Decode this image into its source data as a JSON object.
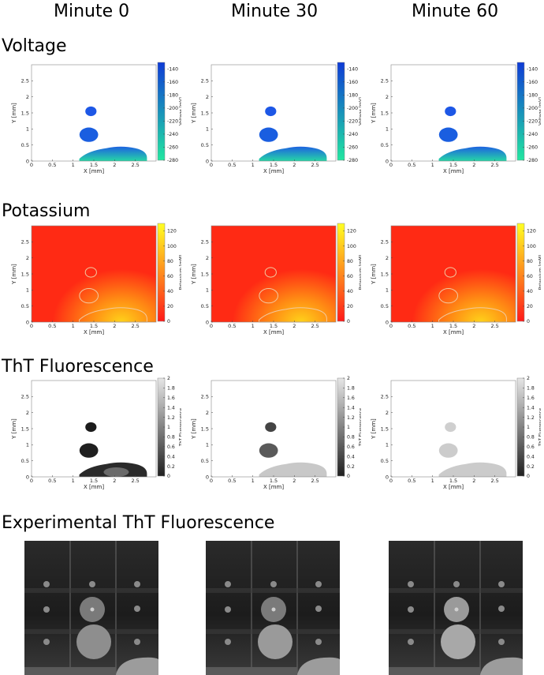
{
  "column_titles": [
    "Minute 0",
    "Minute 30",
    "Minute 60"
  ],
  "row_titles": {
    "voltage": "Voltage",
    "potassium": "Potassium",
    "tht": "ThT Fluorescence",
    "experimental": "Experimental ThT Fluorescence"
  },
  "colors": {
    "voltage_cmap": [
      "#22e6a0",
      "#0f3bd6"
    ],
    "potassium_cmap": [
      "#ff1a1a",
      "#ffff22"
    ],
    "tht_cmap": [
      "#202020",
      "#e6e6e6"
    ],
    "background": "#ffffff"
  },
  "chart_data": [
    {
      "type": "heatmap",
      "quantity": "voltage",
      "minute": 0,
      "xlabel": "X [mm]",
      "ylabel": "Y [mm]",
      "xlim": [
        0,
        3
      ],
      "ylim": [
        0,
        3
      ],
      "xticks": [
        "0",
        "0.5",
        "1",
        "1.5",
        "2",
        "2.5"
      ],
      "yticks": [
        "0",
        "0.5",
        "1",
        "1.5",
        "2",
        "2.5"
      ],
      "colorbar": {
        "label": "Voltage [mV]",
        "ticks": [
          "-140",
          "-160",
          "-180",
          "-200",
          "-220",
          "-240",
          "-260",
          "-280"
        ],
        "min": -280,
        "max": -130
      }
    },
    {
      "type": "heatmap",
      "quantity": "voltage",
      "minute": 30,
      "xlabel": "X [mm]",
      "ylabel": "Y [mm]",
      "xlim": [
        0,
        3
      ],
      "ylim": [
        0,
        3
      ],
      "xticks": [
        "0",
        "0.5",
        "1",
        "1.5",
        "2",
        "2.5"
      ],
      "yticks": [
        "0",
        "0.5",
        "1",
        "1.5",
        "2",
        "2.5"
      ],
      "colorbar": {
        "label": "Voltage [mV]",
        "ticks": [
          "-140",
          "-160",
          "-180",
          "-200",
          "-220",
          "-240",
          "-260",
          "-280"
        ],
        "min": -280,
        "max": -130
      }
    },
    {
      "type": "heatmap",
      "quantity": "voltage",
      "minute": 60,
      "xlabel": "X [mm]",
      "ylabel": "Y [mm]",
      "xlim": [
        0,
        3
      ],
      "ylim": [
        0,
        3
      ],
      "xticks": [
        "0",
        "0.5",
        "1",
        "1.5",
        "2",
        "2.5"
      ],
      "yticks": [
        "0",
        "0.5",
        "1",
        "1.5",
        "2",
        "2.5"
      ],
      "colorbar": {
        "label": "Voltage [mV]",
        "ticks": [
          "-140",
          "-160",
          "-180",
          "-200",
          "-220",
          "-240",
          "-260",
          "-280"
        ],
        "min": -280,
        "max": -130
      }
    },
    {
      "type": "heatmap",
      "quantity": "potassium",
      "minute": 0,
      "xlabel": "X [mm]",
      "ylabel": "Y [mm]",
      "xlim": [
        0,
        3
      ],
      "ylim": [
        0,
        3
      ],
      "xticks": [
        "0",
        "0.5",
        "1",
        "1.5",
        "2",
        "2.5"
      ],
      "yticks": [
        "0",
        "0.5",
        "1",
        "1.5",
        "2",
        "2.5"
      ],
      "colorbar": {
        "label": "Potassium [mM]",
        "ticks": [
          "120",
          "100",
          "80",
          "60",
          "40",
          "20",
          "0"
        ],
        "min": 0,
        "max": 130
      }
    },
    {
      "type": "heatmap",
      "quantity": "potassium",
      "minute": 30,
      "xlabel": "X [mm]",
      "ylabel": "Y [mm]",
      "xlim": [
        0,
        3
      ],
      "ylim": [
        0,
        3
      ],
      "xticks": [
        "0",
        "0.5",
        "1",
        "1.5",
        "2",
        "2.5"
      ],
      "yticks": [
        "0",
        "0.5",
        "1",
        "1.5",
        "2",
        "2.5"
      ],
      "colorbar": {
        "label": "Potassium [mM]",
        "ticks": [
          "120",
          "100",
          "80",
          "60",
          "40",
          "20",
          "0"
        ],
        "min": 0,
        "max": 130
      }
    },
    {
      "type": "heatmap",
      "quantity": "potassium",
      "minute": 60,
      "xlabel": "X [mm]",
      "ylabel": "Y [mm]",
      "xlim": [
        0,
        3
      ],
      "ylim": [
        0,
        3
      ],
      "xticks": [
        "0",
        "0.5",
        "1",
        "1.5",
        "2",
        "2.5"
      ],
      "yticks": [
        "0",
        "0.5",
        "1",
        "1.5",
        "2",
        "2.5"
      ],
      "colorbar": {
        "label": "Potassium [mM]",
        "ticks": [
          "120",
          "100",
          "80",
          "60",
          "40",
          "20",
          "0"
        ],
        "min": 0,
        "max": 130
      }
    },
    {
      "type": "heatmap",
      "quantity": "tht",
      "minute": 0,
      "xlabel": "X [mm]",
      "ylabel": "Y [mm]",
      "xlim": [
        0,
        3
      ],
      "ylim": [
        0,
        3
      ],
      "xticks": [
        "0",
        "0.5",
        "1",
        "1.5",
        "2",
        "2.5"
      ],
      "yticks": [
        "0",
        "0.5",
        "1",
        "1.5",
        "2",
        "2.5"
      ],
      "colorbar": {
        "label": "ThT Fluorescence",
        "ticks": [
          "2",
          "1.8",
          "1.6",
          "1.4",
          "1.2",
          "1",
          "0.8",
          "0.6",
          "0.4",
          "0.2",
          "0"
        ],
        "min": 0,
        "max": 2
      }
    },
    {
      "type": "heatmap",
      "quantity": "tht",
      "minute": 30,
      "xlabel": "X [mm]",
      "ylabel": "Y [mm]",
      "xlim": [
        0,
        3
      ],
      "ylim": [
        0,
        3
      ],
      "xticks": [
        "0",
        "0.5",
        "1",
        "1.5",
        "2",
        "2.5"
      ],
      "yticks": [
        "0",
        "0.5",
        "1",
        "1.5",
        "2",
        "2.5"
      ],
      "colorbar": {
        "label": "ThT Fluorescence",
        "ticks": [
          "2",
          "1.8",
          "1.6",
          "1.4",
          "1.2",
          "1",
          "0.8",
          "0.6",
          "0.4",
          "0.2",
          "0"
        ],
        "min": 0,
        "max": 2
      }
    },
    {
      "type": "heatmap",
      "quantity": "tht",
      "minute": 60,
      "xlabel": "X [mm]",
      "ylabel": "Y [mm]",
      "xlim": [
        0,
        3
      ],
      "ylim": [
        0,
        3
      ],
      "xticks": [
        "0",
        "0.5",
        "1",
        "1.5",
        "2",
        "2.5"
      ],
      "yticks": [
        "0",
        "0.5",
        "1",
        "1.5",
        "2",
        "2.5"
      ],
      "colorbar": {
        "label": "ThT Fluorescence",
        "ticks": [
          "2",
          "1.8",
          "1.6",
          "1.4",
          "1.2",
          "1",
          "0.8",
          "0.6",
          "0.4",
          "0.2",
          "0"
        ],
        "min": 0,
        "max": 2
      }
    }
  ]
}
